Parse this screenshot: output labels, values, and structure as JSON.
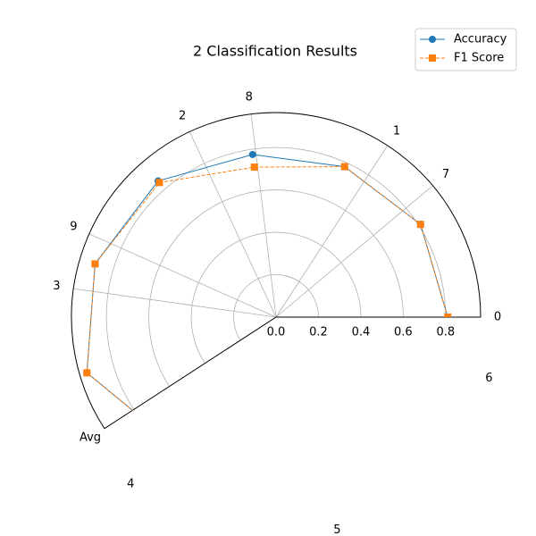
{
  "chart_data": {
    "type": "polar",
    "title": "2 Classification Results",
    "thetalim": [
      0,
      213
    ],
    "rlim": [
      0,
      0.965
    ],
    "rticks": [
      {
        "value": 0,
        "label": "0.0"
      },
      0.2,
      0.4,
      0.6,
      0.8
    ],
    "thetaticks": [
      {
        "value": 0,
        "label": "0"
      },
      {
        "value": 40,
        "label": "7"
      },
      {
        "value": 57,
        "label": "1"
      },
      {
        "value": 97,
        "label": "8"
      },
      {
        "value": 115,
        "label": "2"
      },
      {
        "value": 156,
        "label": "9"
      },
      {
        "value": 172,
        "label": "3"
      },
      {
        "value": 213,
        "label": "Avg"
      },
      {
        "value": 229,
        "label": "4"
      },
      {
        "value": 286,
        "label": "5"
      },
      {
        "value": 344,
        "label": "6"
      }
    ],
    "theta": [
      0,
      32.7,
      65.5,
      98.2,
      130.9,
      163.6,
      196.4,
      229.1
    ],
    "series": [
      {
        "name": "Accuracy",
        "color": "#1f77b4",
        "marker": "circle",
        "linestyle": "solid",
        "values": [
          0.81,
          0.81,
          0.78,
          0.775,
          0.85,
          0.89,
          0.93,
          0.77
        ]
      },
      {
        "name": "F1 Score",
        "color": "#ff7f0e",
        "marker": "square",
        "linestyle": "dashed",
        "values": [
          0.81,
          0.81,
          0.78,
          0.715,
          0.84,
          0.89,
          0.93,
          0.77
        ]
      }
    ],
    "grid": true,
    "legend": "upper right"
  }
}
